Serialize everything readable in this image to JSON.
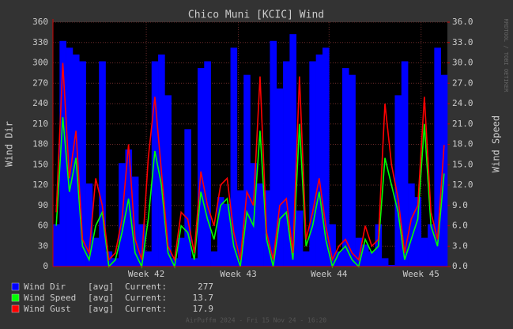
{
  "chart_data": {
    "type": "rrd",
    "title": "Chico Muni [KCIC] Wind",
    "ylabel": "Wind Dir",
    "y2label": "Wind Speed",
    "ylim": [
      0,
      360
    ],
    "yticks": [
      0,
      30,
      60,
      90,
      120,
      150,
      180,
      210,
      240,
      270,
      300,
      330,
      360
    ],
    "y2lim": [
      0,
      36
    ],
    "y2ticks": [
      {
        "value": 0,
        "label": "0.0"
      },
      {
        "value": 3,
        "label": "3.0"
      },
      {
        "value": 6,
        "label": "6.0"
      },
      {
        "value": 9,
        "label": "9.0"
      },
      {
        "value": 12,
        "label": "12.0"
      },
      {
        "value": 15,
        "label": "15.0"
      },
      {
        "value": 18,
        "label": "18.0"
      },
      {
        "value": 21,
        "label": "21.0"
      },
      {
        "value": 24,
        "label": "24.0"
      },
      {
        "value": 27,
        "label": "27.0"
      },
      {
        "value": 30,
        "label": "30.0"
      },
      {
        "value": 33,
        "label": "33.0"
      },
      {
        "value": 36,
        "label": "36.0"
      }
    ],
    "xlim": [
      0,
      30
    ],
    "xticks": [
      {
        "value": 7.1,
        "label": "Week 42"
      },
      {
        "value": 14.1,
        "label": "Week 43"
      },
      {
        "value": 21.0,
        "label": "Week 44"
      },
      {
        "value": 28.0,
        "label": "Week 45"
      }
    ],
    "grid": true,
    "x": [
      0,
      0.5,
      1,
      1.5,
      2,
      2.5,
      3,
      3.5,
      4,
      4.5,
      5,
      5.5,
      6,
      6.5,
      7,
      7.5,
      8,
      8.5,
      9,
      9.5,
      10,
      10.5,
      11,
      11.5,
      12,
      12.5,
      13,
      13.5,
      14,
      14.5,
      15,
      15.5,
      16,
      16.5,
      17,
      17.5,
      18,
      18.5,
      19,
      19.5,
      20,
      20.5,
      21,
      21.5,
      22,
      22.5,
      23,
      23.5,
      24,
      24.5,
      25,
      25.5,
      26,
      26.5,
      27,
      27.5,
      28,
      28.5,
      29,
      29.5
    ],
    "series": [
      {
        "name": "Wind Dir",
        "color": "#0000ff",
        "values": [
          60,
          330,
          320,
          310,
          300,
          120,
          40,
          300,
          20,
          10,
          150,
          170,
          130,
          60,
          20,
          300,
          310,
          250,
          10,
          40,
          200,
          10,
          290,
          300,
          20,
          100,
          90,
          320,
          110,
          280,
          150,
          120,
          110,
          330,
          260,
          300,
          340,
          80,
          20,
          300,
          310,
          320,
          60,
          20,
          290,
          280,
          40,
          30,
          20,
          60,
          10,
          0,
          250,
          300,
          120,
          100,
          40,
          60,
          320,
          280
        ]
      },
      {
        "name": "Wind Speed",
        "color": "#00ff00",
        "axis": "y2",
        "values": [
          6,
          22,
          11,
          16,
          3,
          1,
          6,
          8,
          0,
          1,
          5,
          10,
          2,
          0,
          7,
          17,
          12,
          2,
          0,
          6,
          5,
          1,
          11,
          7,
          4,
          9,
          10,
          3,
          0,
          8,
          6,
          20,
          4,
          0,
          7,
          8,
          1,
          21,
          3,
          6,
          11,
          4,
          0,
          2,
          3,
          1,
          0,
          4,
          2,
          3,
          16,
          12,
          8,
          1,
          4,
          7,
          21,
          6,
          3,
          13.7
        ]
      },
      {
        "name": "Wind Gust",
        "color": "#ff0000",
        "axis": "y2",
        "values": [
          8,
          30,
          13,
          20,
          4,
          2,
          13,
          9,
          1,
          2,
          7,
          18,
          4,
          1,
          16,
          25,
          14,
          3,
          1,
          8,
          7,
          2,
          14,
          9,
          6,
          12,
          13,
          5,
          1,
          11,
          9,
          28,
          5,
          1,
          9,
          10,
          2,
          28,
          4,
          8,
          13,
          6,
          1,
          3,
          4,
          2,
          1,
          6,
          3,
          4,
          24,
          15,
          10,
          2,
          7,
          9,
          25,
          8,
          4,
          17.9
        ]
      }
    ],
    "legend": {
      "stat": "[avg]",
      "current_label": "Current:",
      "current": [
        277,
        13.7,
        17.9
      ]
    },
    "footer": "AirPuffm 2024 - Fri 15 Nov 24 - 16:20",
    "credit": "RRDTOOL / TOBI OETIKER"
  }
}
